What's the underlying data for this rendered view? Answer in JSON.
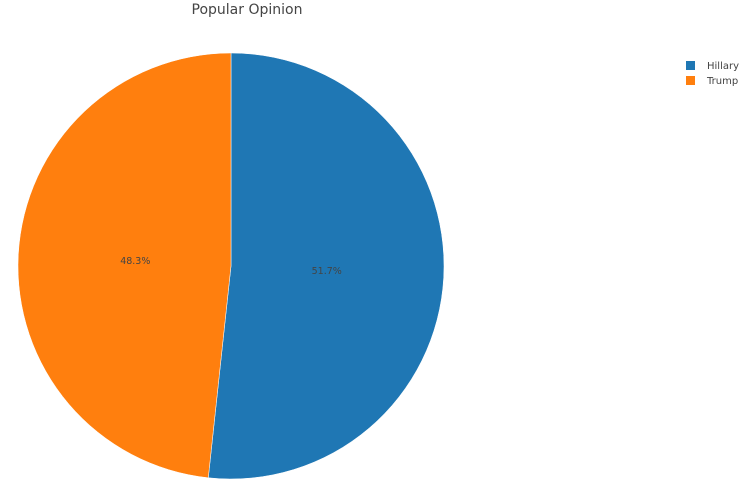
{
  "chart_data": {
    "type": "pie",
    "title": "Popular Opinion",
    "labels": [
      "Hillary",
      "Trump"
    ],
    "values": [
      51.7,
      48.3
    ],
    "value_labels": [
      "51.7%",
      "48.3%"
    ],
    "colors": [
      "#1f77b4",
      "#ff7f0e"
    ],
    "legend_position": "top-right"
  }
}
